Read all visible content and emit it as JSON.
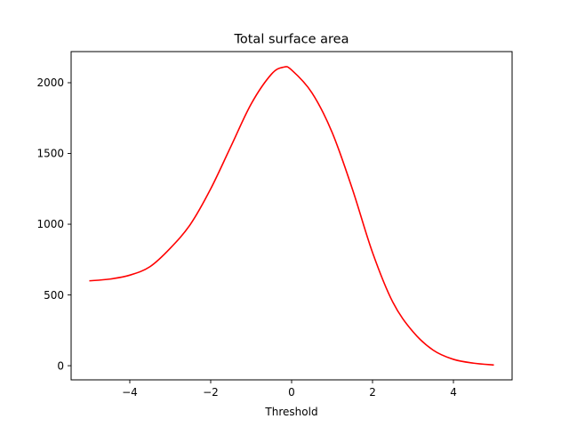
{
  "chart_data": {
    "type": "line",
    "title": "Total surface area",
    "xlabel": "Threshold",
    "ylabel": "",
    "xlim": [
      -5.45,
      5.45
    ],
    "ylim": [
      -100,
      2220
    ],
    "x_ticks": [
      -4,
      -2,
      0,
      2,
      4
    ],
    "x_tick_labels": [
      "−4",
      "−2",
      "0",
      "2",
      "4"
    ],
    "y_ticks": [
      0,
      500,
      1000,
      1500,
      2000
    ],
    "y_tick_labels": [
      "0",
      "500",
      "1000",
      "1500",
      "2000"
    ],
    "grid": false,
    "series": [
      {
        "color": "#ff0000",
        "x": [
          -5.0,
          -4.5,
          -4.0,
          -3.5,
          -3.0,
          -2.5,
          -2.0,
          -1.5,
          -1.0,
          -0.5,
          -0.2,
          0.0,
          0.5,
          1.0,
          1.5,
          2.0,
          2.5,
          3.0,
          3.5,
          4.0,
          4.5,
          5.0
        ],
        "y": [
          600,
          612,
          640,
          700,
          830,
          1000,
          1250,
          1550,
          1850,
          2060,
          2110,
          2090,
          1930,
          1650,
          1250,
          800,
          450,
          240,
          110,
          45,
          18,
          5
        ]
      }
    ]
  }
}
